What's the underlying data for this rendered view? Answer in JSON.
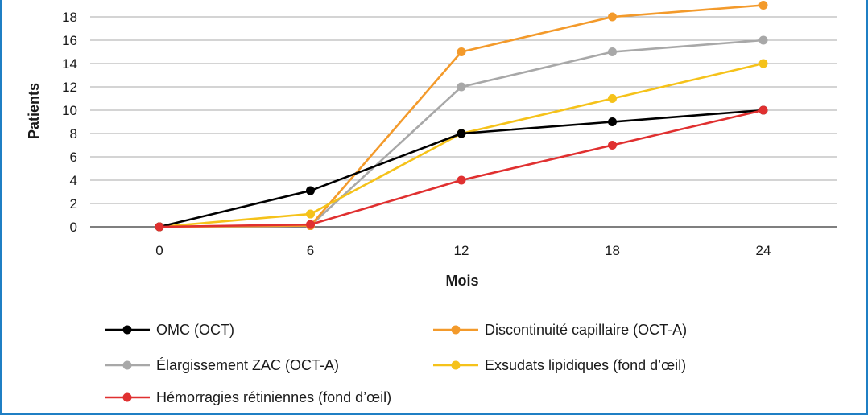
{
  "chart_data": {
    "type": "line",
    "title": "",
    "xlabel": "Mois",
    "ylabel": "Patients",
    "x": [
      0,
      6,
      12,
      18,
      24
    ],
    "xlim": [
      0,
      24
    ],
    "ylim": [
      0,
      19
    ],
    "yticks": [
      0,
      2,
      4,
      6,
      8,
      10,
      12,
      14,
      16,
      18
    ],
    "grid": true,
    "legend_position": "bottom",
    "series": [
      {
        "name": "OMC (OCT)",
        "color": "#000000",
        "values": [
          0,
          3.1,
          8,
          9,
          10
        ]
      },
      {
        "name": "Discontinuité capillaire (OCT-A)",
        "color": "#f39a2b",
        "values": [
          0,
          0.1,
          15,
          18,
          19
        ]
      },
      {
        "name": "Élargissement ZAC (OCT-A)",
        "color": "#a8a8a8",
        "values": [
          0,
          0.1,
          12,
          15,
          16
        ]
      },
      {
        "name": "Exsudats lipidiques (fond d’œil)",
        "color": "#f5c21a",
        "values": [
          0,
          1.1,
          8,
          11,
          14
        ]
      },
      {
        "name": "Hémorragies rétiniennes (fond d’œil)",
        "color": "#e03030",
        "values": [
          0,
          0.2,
          4,
          7,
          10
        ]
      }
    ]
  }
}
